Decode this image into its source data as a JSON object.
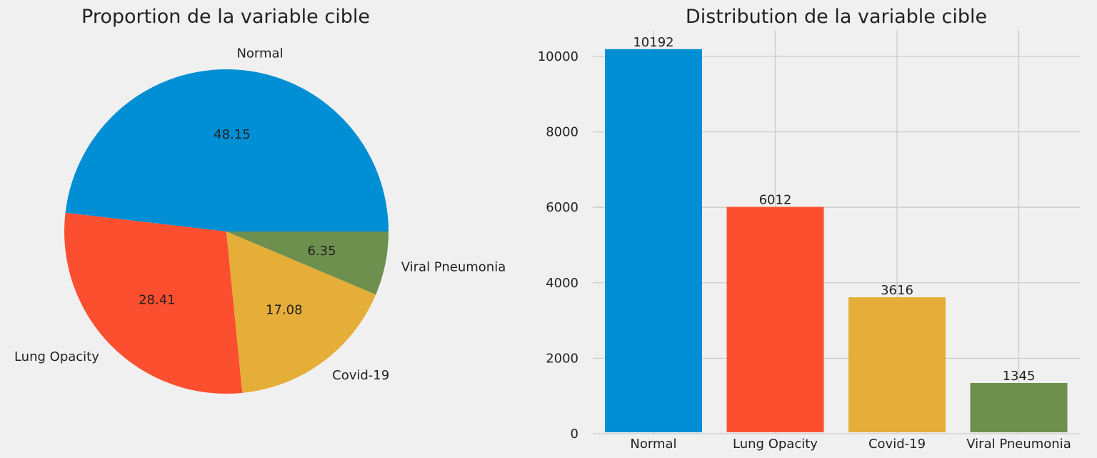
{
  "chart_data": [
    {
      "type": "pie",
      "title": "Proportion de la variable cible",
      "categories": [
        "Normal",
        "Lung Opacity",
        "Covid-19",
        "Viral Pneumonia"
      ],
      "values": [
        48.15,
        28.41,
        17.08,
        6.35
      ],
      "value_labels": [
        "48.15",
        "28.41",
        "17.08",
        "6.35"
      ],
      "colors": [
        "#008fd5",
        "#fc4f30",
        "#e5ae38",
        "#6d904f"
      ]
    },
    {
      "type": "bar",
      "title": "Distribution de la variable cible",
      "categories": [
        "Normal",
        "Lung Opacity",
        "Covid-19",
        "Viral Pneumonia"
      ],
      "values": [
        10192,
        6012,
        3616,
        1345
      ],
      "colors": [
        "#008fd5",
        "#fc4f30",
        "#e5ae38",
        "#6d904f"
      ],
      "xlabel": "",
      "ylabel": "",
      "ylim": [
        0,
        10700
      ],
      "yticks": [
        0,
        2000,
        4000,
        6000,
        8000,
        10000
      ],
      "grid": true
    }
  ]
}
